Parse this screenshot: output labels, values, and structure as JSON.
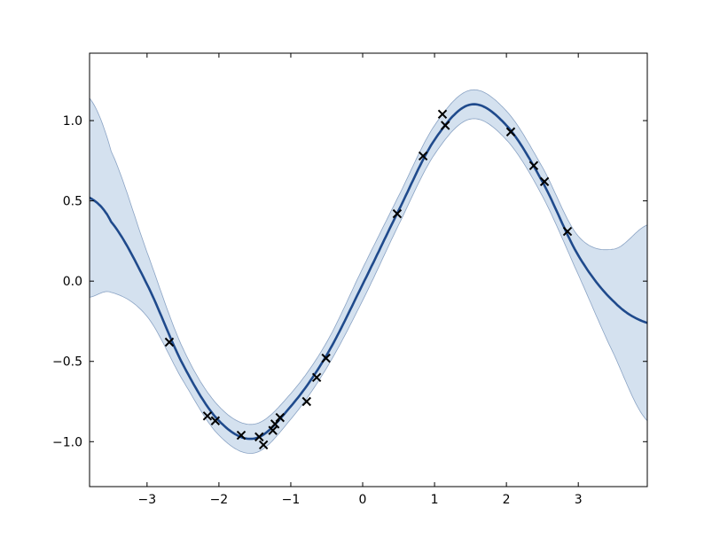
{
  "chart_data": {
    "type": "line",
    "title": "",
    "xlabel": "",
    "ylabel": "",
    "xlim": [
      -3.8,
      3.96
    ],
    "ylim": [
      -1.28,
      1.42
    ],
    "grid": false,
    "xticks": [
      -3,
      -2,
      -1,
      0,
      1,
      2,
      3
    ],
    "xtick_labels": [
      "−3",
      "−2",
      "−1",
      "0",
      "1",
      "2",
      "3"
    ],
    "yticks": [
      -1.0,
      -0.5,
      0.0,
      0.5,
      1.0
    ],
    "ytick_labels": [
      "−1.0",
      "−0.5",
      "0.0",
      "0.5",
      "1.0"
    ],
    "mean": {
      "x": [
        -3.8,
        -3.5,
        -3.0,
        -2.5,
        -2.0,
        -1.5,
        -1.0,
        -0.5,
        0.0,
        0.5,
        1.0,
        1.5,
        2.0,
        2.5,
        3.0,
        3.5,
        3.96
      ],
      "y": [
        0.52,
        0.37,
        -0.02,
        -0.52,
        -0.87,
        -0.98,
        -0.78,
        -0.46,
        -0.02,
        0.44,
        0.88,
        1.1,
        0.97,
        0.62,
        0.16,
        -0.13,
        -0.26
      ]
    },
    "band_halfwidth": [
      0.62,
      0.44,
      0.2,
      0.1,
      0.09,
      0.09,
      0.08,
      0.08,
      0.1,
      0.09,
      0.09,
      0.09,
      0.09,
      0.09,
      0.12,
      0.33,
      0.61
    ],
    "observations": {
      "x": [
        -2.69,
        -2.16,
        -2.05,
        -1.69,
        -1.44,
        -1.38,
        -1.25,
        -1.22,
        -1.15,
        -0.78,
        -0.64,
        -0.51,
        0.48,
        0.84,
        1.11,
        1.15,
        2.06,
        2.38,
        2.53,
        2.85
      ],
      "y": [
        -0.38,
        -0.84,
        -0.87,
        -0.96,
        -0.97,
        -1.02,
        -0.93,
        -0.89,
        -0.85,
        -0.75,
        -0.6,
        -0.48,
        0.42,
        0.78,
        1.04,
        0.97,
        0.93,
        0.72,
        0.62,
        0.31
      ]
    },
    "colors": {
      "mean_line": "#1f4a8c",
      "band_fill": "#d4e1ef",
      "band_edge": "#8aa3c4",
      "markers": "#000000"
    }
  }
}
